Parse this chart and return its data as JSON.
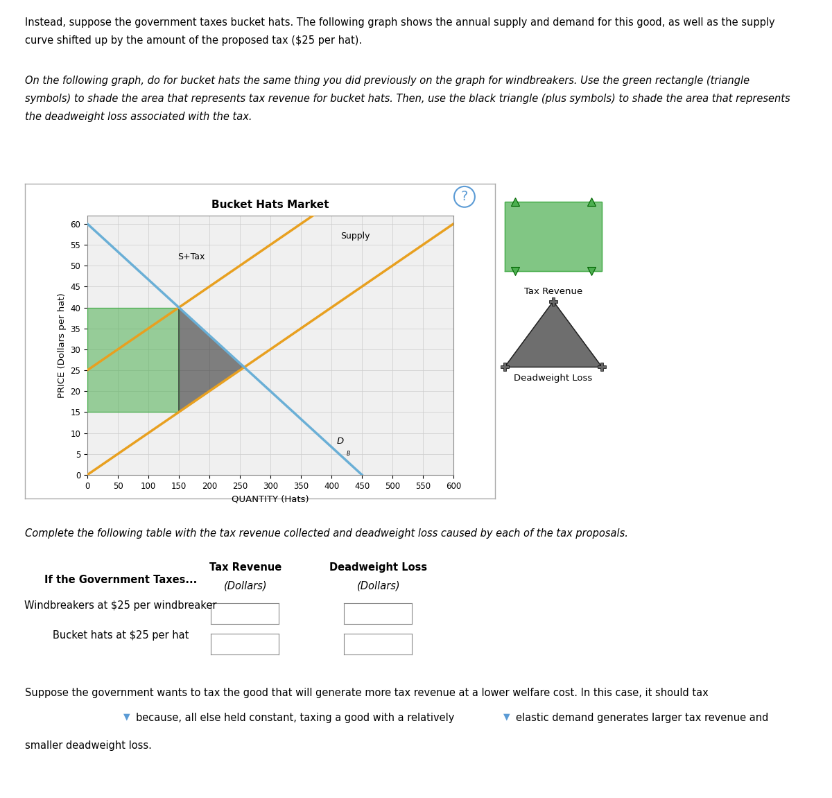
{
  "title": "Bucket Hats Market",
  "xlabel": "QUANTITY (Hats)",
  "ylabel": "PRICE (Dollars per hat)",
  "xlim": [
    0,
    600
  ],
  "ylim": [
    0,
    62
  ],
  "xticks": [
    0,
    50,
    100,
    150,
    200,
    250,
    300,
    350,
    400,
    450,
    500,
    550,
    600
  ],
  "yticks": [
    0,
    5,
    10,
    15,
    20,
    25,
    30,
    35,
    40,
    45,
    50,
    55,
    60
  ],
  "supply_color": "#E8A020",
  "demand_color": "#6aafd6",
  "supply_x0": 0,
  "supply_y0": 0,
  "supply_x1": 600,
  "supply_y1": 60,
  "tax": 25,
  "demand_x0": 0,
  "demand_y0": 60,
  "demand_x1": 450,
  "demand_y1": 0,
  "supply_label": "Supply",
  "stax_label": "S+Tax",
  "demand_label": "D",
  "demand_subscript": "B",
  "tax_revenue_color": "#4CAF50",
  "deadweight_loss_color": "#333333",
  "legend_tax_revenue_label": "Tax Revenue",
  "legend_dwl_label": "Deadweight Loss",
  "bg_color": "#f0f0f0",
  "grid_color": "#cccccc",
  "question_mark_color": "#5b9bd5",
  "para1": "Instead, suppose the government taxes bucket hats. The following graph shows the annual supply and demand for this good, as well as the supply\ncurve shifted up by the amount of the proposed tax ($25 per hat).",
  "para2": "On the following graph, do for bucket hats the same thing you did previously on the graph for windbreakers. Use the green rectangle (triangle\nsymbols) to shade the area that represents tax revenue for bucket hats. Then, use the black triangle (plus symbols) to shade the area that represents\nthe deadweight loss associated with the tax.",
  "table_intro": "Complete the following table with the tax revenue collected and deadweight loss caused by each of the tax proposals.",
  "table_col1": "If the Government Taxes...",
  "table_col2_header": "Tax Revenue",
  "table_col3_header": "Deadweight Loss",
  "table_col2_sub": "(Dollars)",
  "table_col3_sub": "(Dollars)",
  "table_row1": "Windbreakers at $25 per windbreaker",
  "table_row2": "Bucket hats at $25 per hat",
  "bottom_text1": "Suppose the government wants to tax the good that will generate more tax revenue at a lower welfare cost. In this case, it should tax",
  "bottom_text2": "because, all else held constant, taxing a good with a relatively",
  "bottom_text3": "elastic demand generates larger tax revenue and",
  "bottom_text4": "smaller deadweight loss."
}
